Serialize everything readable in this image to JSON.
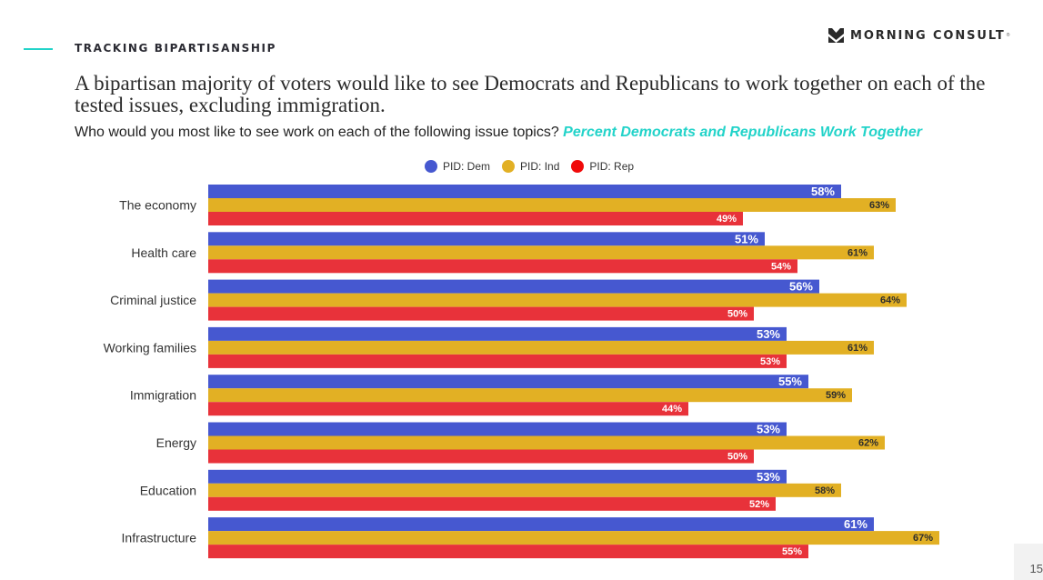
{
  "header": {
    "section_label": "TRACKING BIPARTISANSHIP",
    "logo_text": "MORNING CONSULT",
    "logo_mark": "®",
    "accent_color": "#22d3c9"
  },
  "headline": "A bipartisan majority of voters would like to see Democrats and Republicans to work together on each of the tested issues, excluding immigration.",
  "subtitle": {
    "question": "Who would you most like to see work on each of the following issue topics?",
    "highlight": "Percent Democrats and Republicans Work Together"
  },
  "page_number": "15",
  "chart_data": {
    "type": "bar",
    "orientation": "horizontal",
    "title": "",
    "xlabel": "",
    "ylabel": "",
    "xlim": [
      0,
      70
    ],
    "grid": false,
    "legend_position": "top",
    "value_suffix": "%",
    "categories": [
      "The economy",
      "Health care",
      "Criminal justice",
      "Working families",
      "Immigration",
      "Energy",
      "Education",
      "Infrastructure"
    ],
    "series": [
      {
        "name": "PID: Dem",
        "color": "#4658d0",
        "label_color": "#ffffff",
        "values": [
          58,
          51,
          56,
          53,
          55,
          53,
          53,
          61
        ]
      },
      {
        "name": "PID: Ind",
        "color": "#e2b024",
        "label_color": "#2d2d2d",
        "values": [
          63,
          61,
          64,
          61,
          59,
          62,
          58,
          67
        ]
      },
      {
        "name": "PID: Rep",
        "color": "#e8323a",
        "label_color": "#ffffff",
        "values": [
          49,
          54,
          50,
          53,
          44,
          50,
          52,
          55
        ]
      }
    ],
    "legend_dot_colors": [
      "#4658d0",
      "#e2b024",
      "#f00a0a"
    ]
  }
}
